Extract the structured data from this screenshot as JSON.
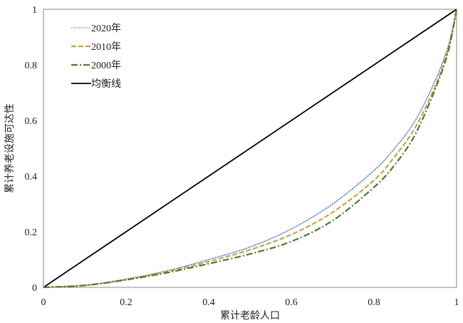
{
  "chart_data": {
    "type": "line",
    "xlabel": "累计老龄人口",
    "ylabel": "累计养老设施可达性",
    "xlim": [
      0,
      1
    ],
    "ylim": [
      0,
      1
    ],
    "x_ticks": [
      "0",
      "0.2",
      "0.4",
      "0.6",
      "0.8",
      "1"
    ],
    "y_ticks": [
      "0",
      "0.2",
      "0.4",
      "0.6",
      "0.8",
      "1"
    ],
    "grid": false,
    "legend_position": "top-left",
    "series": [
      {
        "name": "2020年",
        "color": "#4472c4",
        "dash": "dotted",
        "x": [
          0,
          0.1,
          0.2,
          0.3,
          0.4,
          0.5,
          0.6,
          0.7,
          0.8,
          0.85,
          0.9,
          0.95,
          0.98,
          1
        ],
        "y": [
          0,
          0.008,
          0.03,
          0.06,
          0.1,
          0.145,
          0.21,
          0.3,
          0.42,
          0.5,
          0.6,
          0.75,
          0.87,
          1
        ]
      },
      {
        "name": "2010年",
        "color": "#c9a24a",
        "dash": "dashed",
        "x": [
          0,
          0.1,
          0.2,
          0.3,
          0.4,
          0.5,
          0.6,
          0.7,
          0.8,
          0.85,
          0.9,
          0.95,
          0.98,
          1
        ],
        "y": [
          0,
          0.007,
          0.028,
          0.057,
          0.093,
          0.135,
          0.19,
          0.27,
          0.385,
          0.47,
          0.575,
          0.73,
          0.86,
          1
        ]
      },
      {
        "name": "2000年",
        "color": "#4e7a2a",
        "dash": "dashdot",
        "x": [
          0,
          0.1,
          0.2,
          0.3,
          0.4,
          0.5,
          0.6,
          0.7,
          0.8,
          0.85,
          0.9,
          0.95,
          0.98,
          1
        ],
        "y": [
          0,
          0.007,
          0.027,
          0.053,
          0.085,
          0.12,
          0.165,
          0.24,
          0.36,
          0.44,
          0.55,
          0.72,
          0.85,
          1
        ]
      },
      {
        "name": "均衡线",
        "color": "#000000",
        "dash": "solid",
        "x": [
          0,
          1
        ],
        "y": [
          0,
          1
        ]
      }
    ]
  }
}
